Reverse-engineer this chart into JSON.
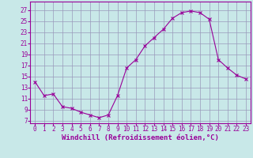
{
  "x": [
    0,
    1,
    2,
    3,
    4,
    5,
    6,
    7,
    8,
    9,
    10,
    11,
    12,
    13,
    14,
    15,
    16,
    17,
    18,
    19,
    20,
    21,
    22,
    23
  ],
  "y": [
    14.0,
    11.5,
    11.8,
    9.5,
    9.2,
    8.5,
    8.0,
    7.5,
    8.0,
    11.5,
    16.5,
    18.0,
    20.5,
    22.0,
    23.5,
    25.5,
    26.5,
    26.8,
    26.5,
    25.3,
    18.0,
    16.5,
    15.2,
    14.5
  ],
  "line_color": "#990099",
  "marker": "x",
  "marker_color": "#990099",
  "bg_color": "#c8e8e8",
  "grid_color": "#9999bb",
  "xlabel": "Windchill (Refroidissement éolien,°C)",
  "xlabel_color": "#990099",
  "xtick_color": "#990099",
  "ytick_color": "#990099",
  "yticks": [
    7,
    9,
    11,
    13,
    15,
    17,
    19,
    21,
    23,
    25,
    27
  ],
  "ylim": [
    6.5,
    28.5
  ],
  "xlim": [
    -0.5,
    23.5
  ],
  "tick_fontsize": 5.5,
  "xlabel_fontsize": 6.5
}
